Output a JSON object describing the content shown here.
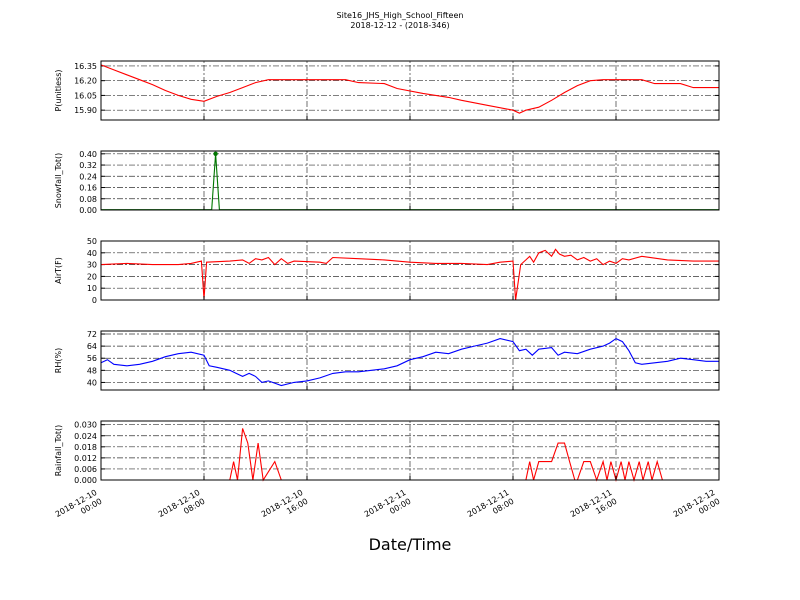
{
  "chart_data": {
    "type": "line",
    "title": "Site16_JHS_High_School_Fifteen",
    "subtitle": "2018-12-12 - (2018-346)",
    "xlabel": "Date/Time",
    "x_range": [
      "2018-12-10 00:00",
      "2018-12-12 00:00"
    ],
    "x_ticks": [
      {
        "l1": "2018-12-10",
        "l2": "00:00",
        "hour": 0
      },
      {
        "l1": "2018-12-10",
        "l2": "08:00",
        "hour": 8
      },
      {
        "l1": "2018-12-10",
        "l2": "16:00",
        "hour": 16
      },
      {
        "l1": "2018-12-11",
        "l2": "00:00",
        "hour": 24
      },
      {
        "l1": "2018-12-11",
        "l2": "08:00",
        "hour": 32
      },
      {
        "l1": "2018-12-11",
        "l2": "16:00",
        "hour": 40
      },
      {
        "l1": "2018-12-12",
        "l2": "00:00",
        "hour": 48
      }
    ],
    "grid": true,
    "panels": [
      {
        "ylabel": "P(unitless)",
        "color": "#ff0000",
        "ylim": [
          15.8,
          16.4
        ],
        "yticks": [
          "15.90",
          "16.05",
          "16.20",
          "16.35"
        ],
        "points": [
          [
            0,
            16.36
          ],
          [
            1,
            16.31
          ],
          [
            2,
            16.26
          ],
          [
            3,
            16.21
          ],
          [
            4,
            16.16
          ],
          [
            5,
            16.1
          ],
          [
            6,
            16.05
          ],
          [
            7,
            16.01
          ],
          [
            8,
            15.99
          ],
          [
            9,
            16.04
          ],
          [
            10,
            16.08
          ],
          [
            11,
            16.13
          ],
          [
            12,
            16.18
          ],
          [
            13,
            16.21
          ],
          [
            16,
            16.21
          ],
          [
            19,
            16.21
          ],
          [
            20,
            16.18
          ],
          [
            22,
            16.17
          ],
          [
            23,
            16.12
          ],
          [
            25,
            16.07
          ],
          [
            27,
            16.03
          ],
          [
            28,
            16.0
          ],
          [
            30,
            15.95
          ],
          [
            32,
            15.9
          ],
          [
            32.5,
            15.87
          ],
          [
            33,
            15.9
          ],
          [
            34,
            15.93
          ],
          [
            35,
            16.0
          ],
          [
            36,
            16.08
          ],
          [
            37,
            16.15
          ],
          [
            38,
            16.2
          ],
          [
            39,
            16.21
          ],
          [
            42,
            16.21
          ],
          [
            43,
            16.17
          ],
          [
            45,
            16.17
          ],
          [
            46,
            16.13
          ],
          [
            48,
            16.13
          ]
        ]
      },
      {
        "ylabel": "Snowfall_Tot()",
        "color": "#007700",
        "ylim": [
          0,
          0.42
        ],
        "yticks": [
          "0.00",
          "0.08",
          "0.16",
          "0.24",
          "0.32",
          "0.40"
        ],
        "points": [
          [
            0,
            0.002
          ],
          [
            8.6,
            0.002
          ],
          [
            8.9,
            0.4
          ],
          [
            9.2,
            0.002
          ],
          [
            48,
            0.002
          ]
        ],
        "marker": [
          8.9,
          0.4
        ]
      },
      {
        "ylabel": "AirT(F)",
        "color": "#ff0000",
        "ylim": [
          0,
          50
        ],
        "yticks": [
          "0",
          "10",
          "20",
          "30",
          "40",
          "50"
        ],
        "points": [
          [
            0,
            30
          ],
          [
            2,
            31
          ],
          [
            4,
            30
          ],
          [
            6,
            30
          ],
          [
            7,
            31
          ],
          [
            7.8,
            33
          ],
          [
            8.0,
            1
          ],
          [
            8.2,
            32
          ],
          [
            10,
            33
          ],
          [
            11,
            34
          ],
          [
            11.5,
            31
          ],
          [
            12,
            35
          ],
          [
            12.5,
            34
          ],
          [
            13,
            36
          ],
          [
            13.5,
            30
          ],
          [
            14,
            35
          ],
          [
            14.5,
            31
          ],
          [
            15,
            33
          ],
          [
            17,
            32
          ],
          [
            17.5,
            31
          ],
          [
            18,
            36
          ],
          [
            20,
            35
          ],
          [
            22,
            34
          ],
          [
            24,
            32
          ],
          [
            26,
            31
          ],
          [
            28,
            31
          ],
          [
            30,
            30
          ],
          [
            31,
            32
          ],
          [
            32,
            33
          ],
          [
            32.2,
            0
          ],
          [
            32.6,
            30
          ],
          [
            33,
            34
          ],
          [
            33.3,
            37
          ],
          [
            33.6,
            32
          ],
          [
            34,
            40
          ],
          [
            34.5,
            42
          ],
          [
            35,
            37
          ],
          [
            35.3,
            43
          ],
          [
            35.6,
            39
          ],
          [
            36,
            37
          ],
          [
            36.5,
            38
          ],
          [
            37,
            34
          ],
          [
            37.5,
            36
          ],
          [
            38,
            33
          ],
          [
            38.5,
            35
          ],
          [
            39,
            30
          ],
          [
            39.5,
            33
          ],
          [
            40,
            31
          ],
          [
            40.5,
            35
          ],
          [
            41,
            34
          ],
          [
            42,
            37
          ],
          [
            44,
            34
          ],
          [
            46,
            33
          ],
          [
            48,
            33
          ]
        ]
      },
      {
        "ylabel": "RH(%)",
        "color": "#0000ff",
        "ylim": [
          35,
          74
        ],
        "yticks": [
          "40",
          "48",
          "56",
          "64",
          "72"
        ],
        "points": [
          [
            0,
            53
          ],
          [
            0.5,
            55
          ],
          [
            1,
            52
          ],
          [
            2,
            51
          ],
          [
            3,
            52
          ],
          [
            4,
            54
          ],
          [
            5,
            57
          ],
          [
            6,
            59
          ],
          [
            7,
            60
          ],
          [
            8,
            58
          ],
          [
            8.4,
            51
          ],
          [
            9,
            50
          ],
          [
            10,
            48
          ],
          [
            10.5,
            46
          ],
          [
            11,
            44
          ],
          [
            11.5,
            46
          ],
          [
            12,
            44
          ],
          [
            12.5,
            40
          ],
          [
            13,
            41
          ],
          [
            14,
            38
          ],
          [
            15,
            40
          ],
          [
            16,
            41
          ],
          [
            17,
            43
          ],
          [
            18,
            46
          ],
          [
            19,
            47
          ],
          [
            20,
            47
          ],
          [
            21,
            48
          ],
          [
            22,
            49
          ],
          [
            23,
            51
          ],
          [
            24,
            55
          ],
          [
            25,
            57
          ],
          [
            26,
            60
          ],
          [
            27,
            59
          ],
          [
            28,
            62
          ],
          [
            29,
            64
          ],
          [
            30,
            66
          ],
          [
            31,
            69
          ],
          [
            32,
            67
          ],
          [
            32.5,
            61
          ],
          [
            33,
            62
          ],
          [
            33.5,
            58
          ],
          [
            34,
            62
          ],
          [
            35,
            63
          ],
          [
            35.5,
            58
          ],
          [
            36,
            60
          ],
          [
            37,
            59
          ],
          [
            38,
            62
          ],
          [
            39,
            64
          ],
          [
            39.5,
            66
          ],
          [
            40,
            69
          ],
          [
            40.5,
            67
          ],
          [
            41,
            61
          ],
          [
            41.5,
            53
          ],
          [
            42,
            52
          ],
          [
            43,
            53
          ],
          [
            44,
            54
          ],
          [
            45,
            56
          ],
          [
            46,
            55
          ],
          [
            47,
            54
          ],
          [
            48,
            54
          ]
        ]
      },
      {
        "ylabel": "Rainfall_Tot()",
        "color": "#ff0000",
        "ylim": [
          0,
          0.032
        ],
        "yticks": [
          "0.000",
          "0.006",
          "0.012",
          "0.018",
          "0.024",
          "0.030"
        ],
        "points": [
          [
            0,
            0
          ],
          [
            10,
            0
          ],
          [
            10.3,
            0.01
          ],
          [
            10.6,
            0
          ],
          [
            11,
            0.028
          ],
          [
            11.4,
            0.02
          ],
          [
            11.8,
            0
          ],
          [
            12.2,
            0.02
          ],
          [
            12.6,
            0
          ],
          [
            13.5,
            0.01
          ],
          [
            14,
            0
          ],
          [
            33,
            0
          ],
          [
            33.3,
            0.01
          ],
          [
            33.6,
            0
          ],
          [
            34,
            0.01
          ],
          [
            35,
            0.01
          ],
          [
            35.5,
            0.02
          ],
          [
            36,
            0.02
          ],
          [
            36.4,
            0.01
          ],
          [
            36.8,
            0
          ],
          [
            37,
            0
          ],
          [
            37.5,
            0.01
          ],
          [
            38,
            0.01
          ],
          [
            38.5,
            0
          ],
          [
            39,
            0.01
          ],
          [
            39.3,
            0
          ],
          [
            39.6,
            0.01
          ],
          [
            40,
            0
          ],
          [
            40.4,
            0.01
          ],
          [
            40.7,
            0
          ],
          [
            41,
            0.01
          ],
          [
            41.4,
            0
          ],
          [
            41.8,
            0.01
          ],
          [
            42.1,
            0
          ],
          [
            42.5,
            0.01
          ],
          [
            42.8,
            0
          ],
          [
            43.2,
            0.01
          ],
          [
            43.6,
            0
          ],
          [
            48,
            0
          ]
        ]
      }
    ]
  }
}
